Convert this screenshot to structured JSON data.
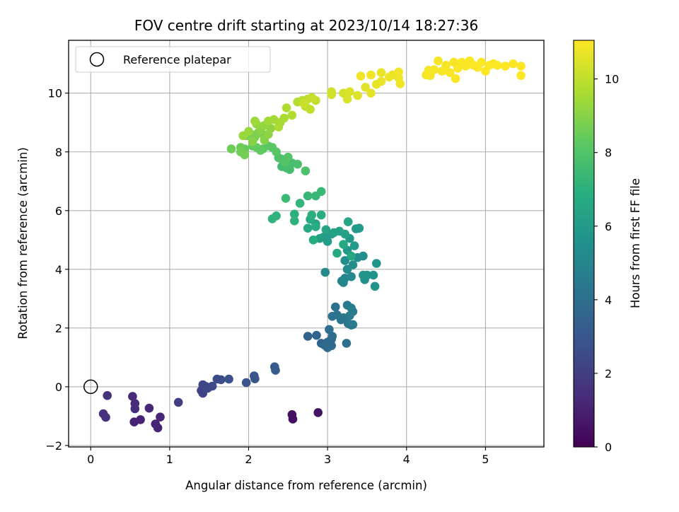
{
  "chart_data": {
    "type": "scatter",
    "title": "FOV centre drift starting at 2023/10/14 18:27:36",
    "xlabel": "Angular distance from reference (arcmin)",
    "ylabel": "Rotation from reference (arcmin)",
    "xlim": [
      -0.28,
      5.74
    ],
    "ylim": [
      -2.05,
      11.8
    ],
    "xticks": [
      0,
      1,
      2,
      3,
      4,
      5
    ],
    "yticks": [
      -2,
      0,
      2,
      4,
      6,
      8,
      10
    ],
    "grid": true,
    "legend": {
      "position": "top-left",
      "entries": [
        {
          "label": "Reference platepar",
          "marker": "open-circle"
        }
      ]
    },
    "reference_point": {
      "x": 0,
      "y": 0
    },
    "colorbar": {
      "label": "Hours from first FF file",
      "colormap": "viridis",
      "range": [
        0,
        11.05
      ],
      "ticks": [
        0,
        2,
        4,
        6,
        8,
        10
      ]
    },
    "points": [
      [
        2.55,
        -0.95,
        0.4
      ],
      [
        2.56,
        -1.1,
        0.45
      ],
      [
        2.88,
        -0.88,
        0.55
      ],
      [
        0.55,
        -1.2,
        1.0
      ],
      [
        0.63,
        -1.12,
        1.05
      ],
      [
        0.82,
        -1.27,
        1.1
      ],
      [
        0.85,
        -1.4,
        1.15
      ],
      [
        0.88,
        -1.03,
        1.2
      ],
      [
        0.74,
        -0.73,
        1.25
      ],
      [
        0.53,
        -0.33,
        1.3
      ],
      [
        0.56,
        -0.57,
        1.35
      ],
      [
        0.56,
        -0.75,
        1.4
      ],
      [
        0.16,
        -0.92,
        1.5
      ],
      [
        0.19,
        -1.04,
        1.55
      ],
      [
        0.21,
        -0.3,
        1.6
      ],
      [
        1.11,
        -0.53,
        2.0
      ],
      [
        1.4,
        -0.13,
        2.2
      ],
      [
        1.42,
        -0.22,
        2.25
      ],
      [
        1.42,
        0.07,
        2.3
      ],
      [
        1.46,
        0.01,
        2.35
      ],
      [
        1.48,
        -0.05,
        2.4
      ],
      [
        1.54,
        0.02,
        2.45
      ],
      [
        1.6,
        0.26,
        2.55
      ],
      [
        1.65,
        0.24,
        2.6
      ],
      [
        1.75,
        0.26,
        2.7
      ],
      [
        1.97,
        0.14,
        2.8
      ],
      [
        2.07,
        0.37,
        2.9
      ],
      [
        2.08,
        0.27,
        2.95
      ],
      [
        2.33,
        0.68,
        3.05
      ],
      [
        2.34,
        0.56,
        3.1
      ],
      [
        2.75,
        1.72,
        3.5
      ],
      [
        2.86,
        1.75,
        3.55
      ],
      [
        2.92,
        1.48,
        3.6
      ],
      [
        2.96,
        1.42,
        3.65
      ],
      [
        3.0,
        1.52,
        3.7
      ],
      [
        3.05,
        1.62,
        3.75
      ],
      [
        3.0,
        1.33,
        3.8
      ],
      [
        3.05,
        1.4,
        3.85
      ],
      [
        3.06,
        1.72,
        3.9
      ],
      [
        3.02,
        1.95,
        3.95
      ],
      [
        3.24,
        1.48,
        4.0
      ],
      [
        3.06,
        2.4,
        4.1
      ],
      [
        3.1,
        2.72,
        4.15
      ],
      [
        3.12,
        2.45,
        4.2
      ],
      [
        3.17,
        2.28,
        4.25
      ],
      [
        3.2,
        2.35,
        4.3
      ],
      [
        3.26,
        2.15,
        4.35
      ],
      [
        3.3,
        2.1,
        4.4
      ],
      [
        3.25,
        2.78,
        4.45
      ],
      [
        3.32,
        2.56,
        4.5
      ],
      [
        3.28,
        2.42,
        4.55
      ],
      [
        3.32,
        2.12,
        4.6
      ],
      [
        3.3,
        2.68,
        4.65
      ],
      [
        3.18,
        3.6,
        5.0
      ],
      [
        3.2,
        3.55,
        5.05
      ],
      [
        3.22,
        3.7,
        5.1
      ],
      [
        3.3,
        3.75,
        5.15
      ],
      [
        2.97,
        3.9,
        5.2
      ],
      [
        3.25,
        4.0,
        5.25
      ],
      [
        3.32,
        4.15,
        5.3
      ],
      [
        3.22,
        4.3,
        5.35
      ],
      [
        3.38,
        4.4,
        5.4
      ],
      [
        3.45,
        4.45,
        5.45
      ],
      [
        3.47,
        3.65,
        5.5
      ],
      [
        3.5,
        3.8,
        5.55
      ],
      [
        3.58,
        3.8,
        5.6
      ],
      [
        3.6,
        3.42,
        5.65
      ],
      [
        3.62,
        4.2,
        5.7
      ],
      [
        3.45,
        3.8,
        5.75
      ],
      [
        3.25,
        4.65,
        5.8
      ],
      [
        3.28,
        5.05,
        5.85
      ],
      [
        3.34,
        4.8,
        5.9
      ],
      [
        3.36,
        5.38,
        5.95
      ],
      [
        3.4,
        5.4,
        6.0
      ],
      [
        3.05,
        5.2,
        6.05
      ],
      [
        2.95,
        5.1,
        6.1
      ],
      [
        3.0,
        4.95,
        6.15
      ],
      [
        2.9,
        5.05,
        6.2
      ],
      [
        3.22,
        5.2,
        6.25
      ],
      [
        3.15,
        5.3,
        6.3
      ],
      [
        3.08,
        5.25,
        6.35
      ],
      [
        2.98,
        5.35,
        6.4
      ],
      [
        2.85,
        5.55,
        6.45
      ],
      [
        3.26,
        5.62,
        6.5
      ],
      [
        3.3,
        4.45,
        6.55
      ],
      [
        3.12,
        4.55,
        6.6
      ],
      [
        3.2,
        4.85,
        6.65
      ],
      [
        2.75,
        5.4,
        6.7
      ],
      [
        2.78,
        5.7,
        6.75
      ],
      [
        2.82,
        5.0,
        6.8
      ],
      [
        2.85,
        5.45,
        6.85
      ],
      [
        2.92,
        5.85,
        6.9
      ],
      [
        2.8,
        5.85,
        6.95
      ],
      [
        2.58,
        5.88,
        7.0
      ],
      [
        2.58,
        5.65,
        7.05
      ],
      [
        2.35,
        5.82,
        7.1
      ],
      [
        2.3,
        5.72,
        7.15
      ],
      [
        2.65,
        6.25,
        7.2
      ],
      [
        2.75,
        6.5,
        7.3
      ],
      [
        2.85,
        6.5,
        7.35
      ],
      [
        2.92,
        6.65,
        7.4
      ],
      [
        2.47,
        6.42,
        7.45
      ],
      [
        2.42,
        7.5,
        7.6
      ],
      [
        2.48,
        7.45,
        7.65
      ],
      [
        2.52,
        7.4,
        7.7
      ],
      [
        2.55,
        7.62,
        7.75
      ],
      [
        2.62,
        7.58,
        7.8
      ],
      [
        2.72,
        7.35,
        7.85
      ],
      [
        2.38,
        7.8,
        7.9
      ],
      [
        2.42,
        7.75,
        7.95
      ],
      [
        2.46,
        7.65,
        8.0
      ],
      [
        2.5,
        7.82,
        8.05
      ],
      [
        2.35,
        8.0,
        8.1
      ],
      [
        2.3,
        8.15,
        8.15
      ],
      [
        2.25,
        8.2,
        8.2
      ],
      [
        2.18,
        8.1,
        8.25
      ],
      [
        2.1,
        8.15,
        8.3
      ],
      [
        2.15,
        8.05,
        8.35
      ],
      [
        2.05,
        8.2,
        8.4
      ],
      [
        1.95,
        8.1,
        8.45
      ],
      [
        1.9,
        8.15,
        8.5
      ],
      [
        1.78,
        8.1,
        8.55
      ],
      [
        1.9,
        8.0,
        8.6
      ],
      [
        1.95,
        7.9,
        8.65
      ],
      [
        1.97,
        8.55,
        8.7
      ],
      [
        2.03,
        8.6,
        8.75
      ],
      [
        2.08,
        8.5,
        8.8
      ],
      [
        2.12,
        8.65,
        8.85
      ],
      [
        2.18,
        8.6,
        8.9
      ],
      [
        2.2,
        8.4,
        8.95
      ],
      [
        2.05,
        8.35,
        9.0
      ],
      [
        2.15,
        8.75,
        9.05
      ],
      [
        2.25,
        8.6,
        9.1
      ],
      [
        2.28,
        8.8,
        9.15
      ],
      [
        2.1,
        8.95,
        9.2
      ],
      [
        2.2,
        8.9,
        9.25
      ],
      [
        2.0,
        8.7,
        9.3
      ],
      [
        1.93,
        8.55,
        9.35
      ],
      [
        2.08,
        9.05,
        9.4
      ],
      [
        2.25,
        9.05,
        9.45
      ],
      [
        2.32,
        9.1,
        9.5
      ],
      [
        2.4,
        9.0,
        9.55
      ],
      [
        2.45,
        9.15,
        9.6
      ],
      [
        2.38,
        8.85,
        9.65
      ],
      [
        2.48,
        9.5,
        9.7
      ],
      [
        2.55,
        9.25,
        9.75
      ],
      [
        2.62,
        9.7,
        9.8
      ],
      [
        2.68,
        9.75,
        9.85
      ],
      [
        2.72,
        9.55,
        9.9
      ],
      [
        2.75,
        9.8,
        9.95
      ],
      [
        2.78,
        9.45,
        10.0
      ],
      [
        2.85,
        9.75,
        10.05
      ],
      [
        2.8,
        9.85,
        10.1
      ],
      [
        2.7,
        9.65,
        10.15
      ],
      [
        3.05,
        10.05,
        10.25
      ],
      [
        3.05,
        9.95,
        10.3
      ],
      [
        3.2,
        10.0,
        10.35
      ],
      [
        3.25,
        9.8,
        10.4
      ],
      [
        3.28,
        10.05,
        10.45
      ],
      [
        3.38,
        9.92,
        10.5
      ],
      [
        3.48,
        10.2,
        10.55
      ],
      [
        3.55,
        10.0,
        10.6
      ],
      [
        3.62,
        10.3,
        10.65
      ],
      [
        3.68,
        10.7,
        10.7
      ],
      [
        3.68,
        10.4,
        10.72
      ],
      [
        3.78,
        10.55,
        10.74
      ],
      [
        3.82,
        10.62,
        10.76
      ],
      [
        3.9,
        10.52,
        10.78
      ],
      [
        3.92,
        10.32,
        10.8
      ],
      [
        3.42,
        10.58,
        10.82
      ],
      [
        3.55,
        10.62,
        10.84
      ],
      [
        3.9,
        10.72,
        10.86
      ],
      [
        4.25,
        10.62,
        10.88
      ],
      [
        4.3,
        10.6,
        10.9
      ],
      [
        4.28,
        10.78,
        10.91
      ],
      [
        4.35,
        10.8,
        10.92
      ],
      [
        4.4,
        11.1,
        10.93
      ],
      [
        4.45,
        10.75,
        10.94
      ],
      [
        4.5,
        10.95,
        10.95
      ],
      [
        4.55,
        10.7,
        10.96
      ],
      [
        4.6,
        11.05,
        10.97
      ],
      [
        4.65,
        10.85,
        10.98
      ],
      [
        4.7,
        11.05,
        10.99
      ],
      [
        4.75,
        10.92,
        11.0
      ],
      [
        4.8,
        11.1,
        11.0
      ],
      [
        4.85,
        10.95,
        11.01
      ],
      [
        4.9,
        10.88,
        11.02
      ],
      [
        4.95,
        11.05,
        11.02
      ],
      [
        5.0,
        10.75,
        11.03
      ],
      [
        5.05,
        10.95,
        11.03
      ],
      [
        5.1,
        11.0,
        11.04
      ],
      [
        5.15,
        10.95,
        11.04
      ],
      [
        5.25,
        10.92,
        11.05
      ],
      [
        5.35,
        11.0,
        11.05
      ],
      [
        5.45,
        10.92,
        11.05
      ],
      [
        5.45,
        10.6,
        11.05
      ],
      [
        4.62,
        10.5,
        10.97
      ]
    ]
  }
}
